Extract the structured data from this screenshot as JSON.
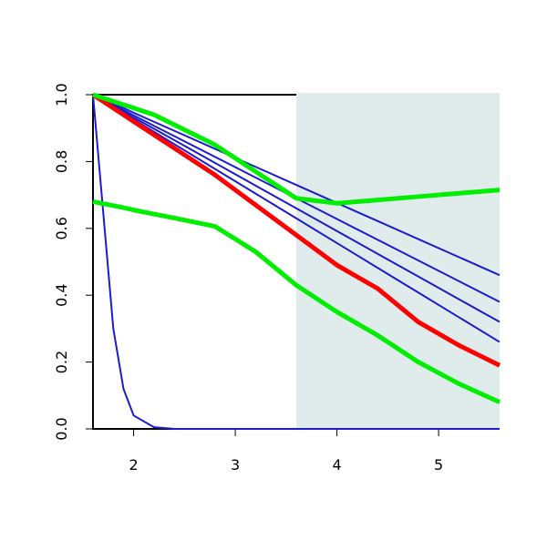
{
  "chart_data": {
    "type": "line",
    "x": [
      1.6,
      1.7,
      1.8,
      1.9,
      2.0,
      2.2,
      2.4,
      2.8,
      3.2,
      3.6,
      4.0,
      4.4,
      4.8,
      5.2,
      5.6
    ],
    "series": [
      {
        "color": "#1c1ccc",
        "width": 2,
        "values": [
          1,
          0.65,
          0.3,
          0.12,
          0.04,
          0.005,
          0,
          0,
          0,
          0,
          0,
          0,
          0,
          0,
          0
        ]
      },
      {
        "color": "#1c1ccc",
        "width": 2,
        "values": [
          1,
          0.987,
          0.973,
          0.96,
          0.946,
          0.919,
          0.892,
          0.838,
          0.784,
          0.73,
          0.676,
          0.622,
          0.568,
          0.514,
          0.46
        ]
      },
      {
        "color": "#1c1ccc",
        "width": 2,
        "values": [
          1,
          0.985,
          0.969,
          0.954,
          0.938,
          0.907,
          0.876,
          0.814,
          0.752,
          0.69,
          0.628,
          0.566,
          0.504,
          0.442,
          0.38
        ]
      },
      {
        "color": "#1c1ccc",
        "width": 2,
        "values": [
          1,
          0.983,
          0.966,
          0.949,
          0.932,
          0.898,
          0.864,
          0.796,
          0.728,
          0.66,
          0.592,
          0.524,
          0.456,
          0.388,
          0.32
        ]
      },
      {
        "color": "#1c1ccc",
        "width": 2,
        "values": [
          1,
          0.982,
          0.963,
          0.945,
          0.926,
          0.889,
          0.852,
          0.778,
          0.704,
          0.63,
          0.556,
          0.482,
          0.408,
          0.334,
          0.26
        ]
      },
      {
        "color": "#ff0000",
        "width": 5,
        "values": [
          1,
          0.98,
          0.96,
          0.94,
          0.92,
          0.88,
          0.84,
          0.76,
          0.67,
          0.58,
          0.49,
          0.42,
          0.32,
          0.25,
          0.19
        ]
      },
      {
        "color": "#00ee00",
        "width": 5,
        "values": [
          1,
          0.99,
          0.98,
          0.97,
          0.96,
          0.94,
          0.91,
          0.85,
          0.77,
          0.69,
          0.675,
          0.685,
          0.695,
          0.705,
          0.715
        ]
      },
      {
        "color": "#00ee00",
        "width": 5,
        "values": [
          0.68,
          0.674,
          0.668,
          0.662,
          0.655,
          0.643,
          0.631,
          0.606,
          0.53,
          0.43,
          0.35,
          0.28,
          0.2,
          0.135,
          0.08
        ]
      }
    ],
    "shaded_region": [
      3.6,
      5.6
    ],
    "shade_color": "#e0ecec",
    "xlim": [
      1.6,
      5.6
    ],
    "xticks": [
      2,
      3,
      4,
      5
    ],
    "ylim": [
      0,
      1
    ],
    "yticks": [
      {
        "value": 0,
        "label": "0.0"
      },
      {
        "value": 0.2,
        "label": "0.2"
      },
      {
        "value": 0.4,
        "label": "0.4"
      },
      {
        "value": 0.6,
        "label": "0.6"
      },
      {
        "value": 0.8,
        "label": "0.8"
      },
      {
        "value": 1,
        "label": "1.0"
      }
    ]
  }
}
